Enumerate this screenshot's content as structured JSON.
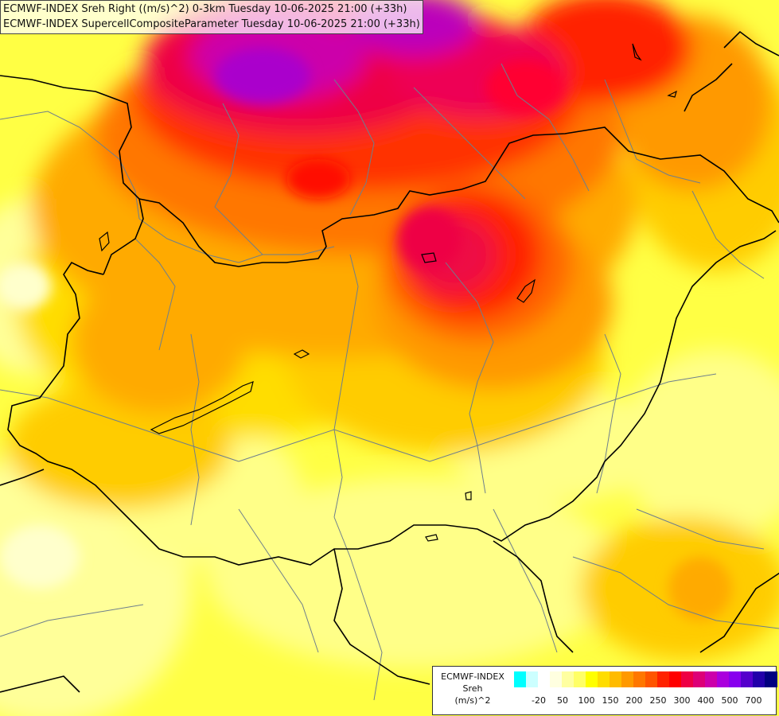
{
  "title": {
    "line1": "ECMWF-INDEX Sreh Right ((m/s)^2) 0-3km Tuesday 10-06-2025 21:00 (+33h)",
    "line2": "ECMWF-INDEX SupercellCompositeParameter Tuesday 10-06-2025 21:00 (+33h)"
  },
  "legend": {
    "title_line1": "ECMWF-INDEX",
    "title_line2": "Sreh",
    "title_line3": "(m/s)^2",
    "colors": [
      "#00ffff",
      "#ccffff",
      "#ffffff",
      "#ffffe0",
      "#ffffa0",
      "#ffff66",
      "#ffff00",
      "#ffdd00",
      "#ffbb00",
      "#ff9900",
      "#ff7700",
      "#ff5500",
      "#ff2200",
      "#ff0000",
      "#ee0044",
      "#dd0077",
      "#cc00aa",
      "#aa00dd",
      "#8800ee",
      "#5500cc",
      "#2200aa",
      "#000080"
    ],
    "tick_labels": [
      "-20",
      "50",
      "100",
      "150",
      "200",
      "250",
      "300",
      "400",
      "500",
      "700"
    ],
    "tick_positions": [
      1,
      3,
      5,
      7,
      9,
      11,
      13,
      15,
      17,
      19
    ]
  },
  "map": {
    "background_color": "#ffff66",
    "border_color": "#000000",
    "region_line_color": "#6e7f8c"
  }
}
